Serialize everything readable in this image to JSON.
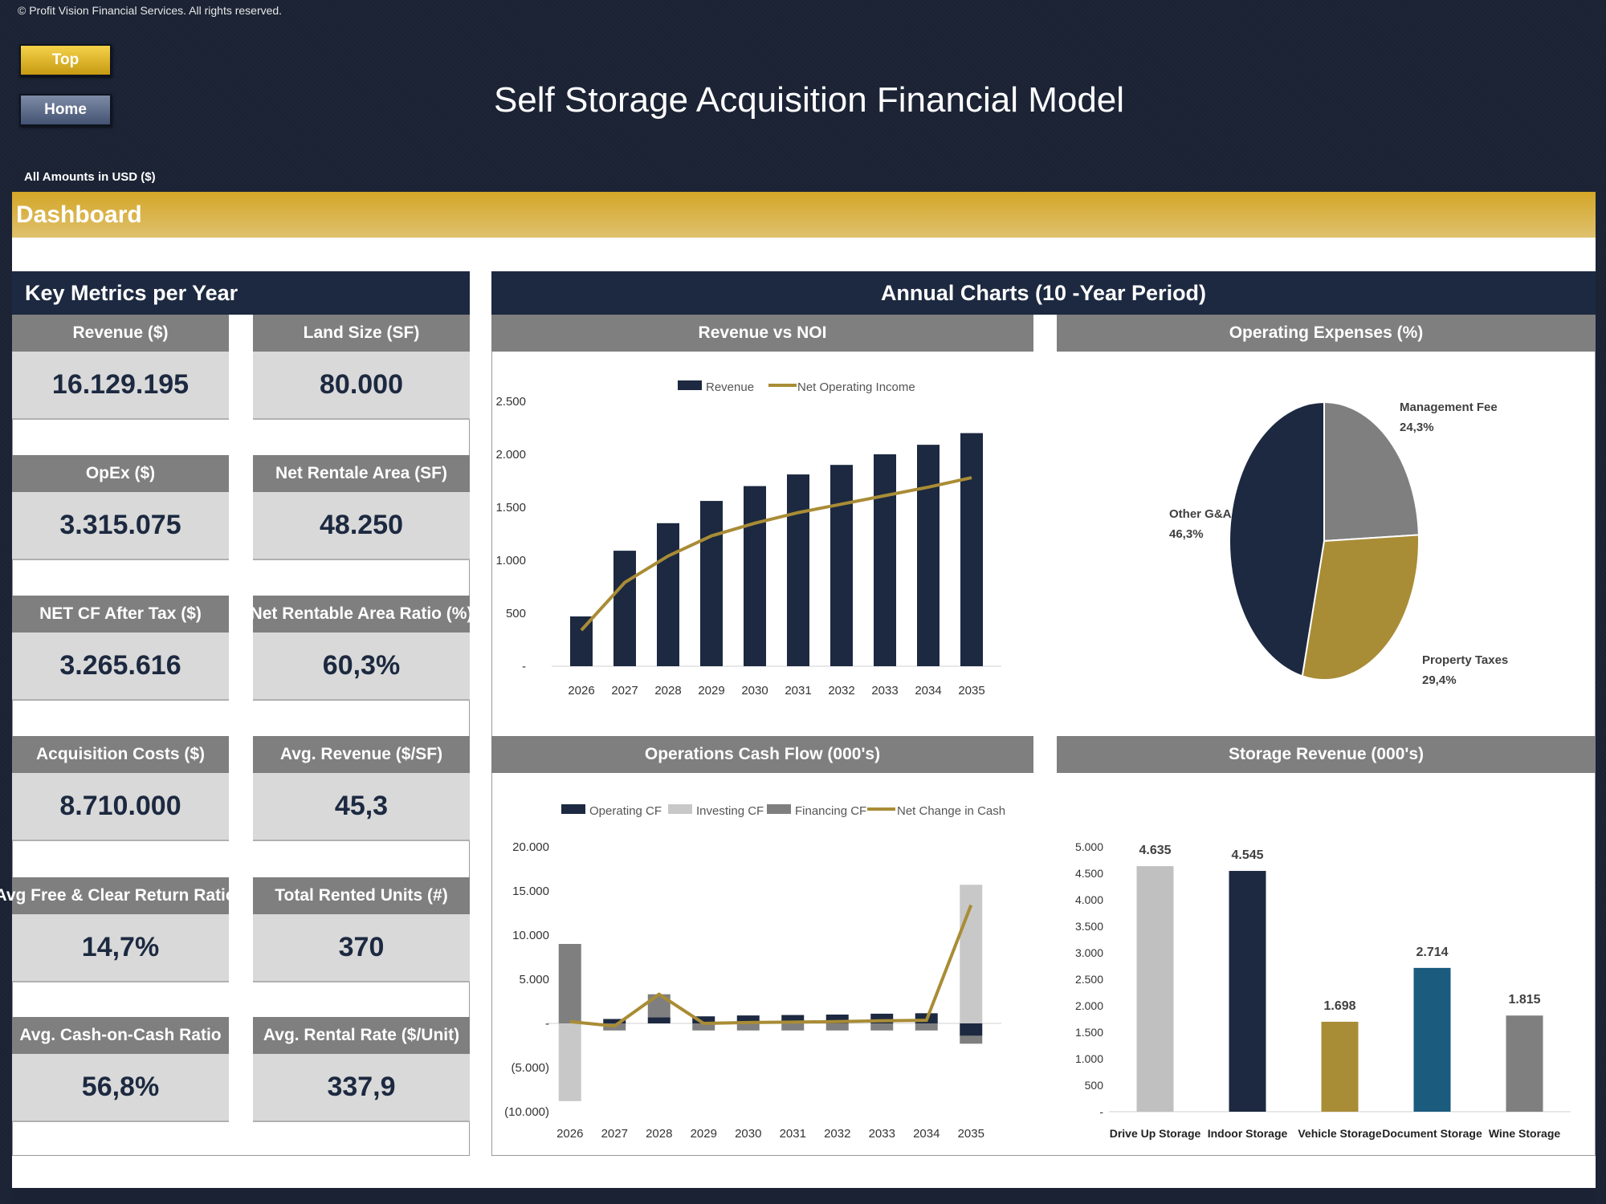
{
  "copyright": "© Profit Vision Financial Services. All rights reserved.",
  "nav": {
    "top_label": "Top",
    "home_label": "Home"
  },
  "title": "Self Storage Acquisition Financial Model",
  "units_label": "All Amounts in  USD ($)",
  "section_title": "Dashboard",
  "key_metrics": {
    "title": "Key Metrics per Year",
    "items": [
      {
        "label": "Revenue ($)",
        "value": "16.129.195"
      },
      {
        "label": "Land Size (SF)",
        "value": "80.000"
      },
      {
        "label": "OpEx ($)",
        "value": "3.315.075"
      },
      {
        "label": "Net Rentale Area (SF)",
        "value": "48.250"
      },
      {
        "label": "NET CF After Tax ($)",
        "value": "3.265.616"
      },
      {
        "label": "Net Rentable Area Ratio (%)",
        "value": "60,3%"
      },
      {
        "label": "Acquisition Costs ($)",
        "value": "8.710.000"
      },
      {
        "label": "Avg. Revenue ($/SF)",
        "value": "45,3"
      },
      {
        "label": "Avg Free & Clear Return Ration",
        "value": "14,7%"
      },
      {
        "label": "Total Rented Units (#)",
        "value": "370"
      },
      {
        "label": "Avg. Cash-on-Cash Ratio",
        "value": "56,8%"
      },
      {
        "label": "Avg. Rental Rate ($/Unit)",
        "value": "337,9"
      }
    ]
  },
  "charts_title": "Annual Charts (10 -Year Period)",
  "colors": {
    "navy": "#1c2940",
    "gold": "#a98c36",
    "gray": "#7f7f7f",
    "lightgray": "#c0c0c0",
    "teal": "#1a5b7e"
  },
  "chart_data": [
    {
      "type": "bar",
      "title": "Revenue vs NOI",
      "categories": [
        "2026",
        "2027",
        "2028",
        "2029",
        "2030",
        "2031",
        "2032",
        "2033",
        "2034",
        "2035"
      ],
      "y_ticks": [
        "-",
        "500",
        "1.000",
        "1.500",
        "2.000",
        "2.500"
      ],
      "ylim": [
        0,
        2500
      ],
      "legend_position": "top",
      "series": [
        {
          "name": "Revenue",
          "kind": "bar",
          "values": [
            470,
            1090,
            1350,
            1560,
            1700,
            1810,
            1900,
            2000,
            2090,
            2200
          ]
        },
        {
          "name": "Net Operating Income",
          "kind": "line",
          "values": [
            340,
            790,
            1040,
            1230,
            1350,
            1450,
            1530,
            1610,
            1690,
            1780
          ]
        }
      ]
    },
    {
      "type": "pie",
      "title": "Operating Expenses (%)",
      "slices": [
        {
          "name": "Management Fee",
          "value": 24.3,
          "label": "24,3%"
        },
        {
          "name": "Property Taxes",
          "value": 29.4,
          "label": "29,4%"
        },
        {
          "name": "Other G&A",
          "value": 46.3,
          "label": "46,3%"
        }
      ]
    },
    {
      "type": "bar",
      "title": "Operations Cash Flow (000's)",
      "categories": [
        "2026",
        "2027",
        "2028",
        "2029",
        "2030",
        "2031",
        "2032",
        "2033",
        "2034",
        "2035"
      ],
      "y_ticks": [
        "(10.000)",
        "(5.000)",
        "-",
        "5.000",
        "10.000",
        "15.000",
        "20.000"
      ],
      "ylim": [
        -10000,
        20000
      ],
      "legend_position": "top",
      "series": [
        {
          "name": "Operating CF",
          "kind": "bar",
          "values": [
            0,
            500,
            700,
            800,
            900,
            950,
            1000,
            1100,
            1150,
            -1400
          ]
        },
        {
          "name": "Investing CF",
          "kind": "bar",
          "values": [
            -8800,
            0,
            0,
            0,
            0,
            0,
            0,
            0,
            0,
            15700
          ]
        },
        {
          "name": "Financing CF",
          "kind": "bar",
          "values": [
            9000,
            -800,
            2600,
            -800,
            -800,
            -800,
            -800,
            -800,
            -800,
            -900
          ]
        },
        {
          "name": "Net Change in Cash",
          "kind": "line",
          "values": [
            200,
            -300,
            3300,
            0,
            100,
            150,
            200,
            300,
            350,
            13400
          ]
        }
      ]
    },
    {
      "type": "bar",
      "title": "Storage Revenue (000's)",
      "categories": [
        "Drive Up Storage",
        "Indoor Storage",
        "Vehicle Storage",
        "Document Storage",
        "Wine Storage"
      ],
      "values": [
        4635,
        4545,
        1698,
        2714,
        1815
      ],
      "data_labels": [
        "4.635",
        "4.545",
        "1.698",
        "2.714",
        "1.815"
      ],
      "bar_colors": [
        "#c0c0c0",
        "#1c2940",
        "#a98c36",
        "#1a5b7e",
        "#7f7f7f"
      ],
      "y_ticks": [
        "-",
        "500",
        "1.000",
        "1.500",
        "2.000",
        "2.500",
        "3.000",
        "3.500",
        "4.000",
        "4.500",
        "5.000"
      ],
      "ylim": [
        0,
        5000
      ]
    }
  ]
}
